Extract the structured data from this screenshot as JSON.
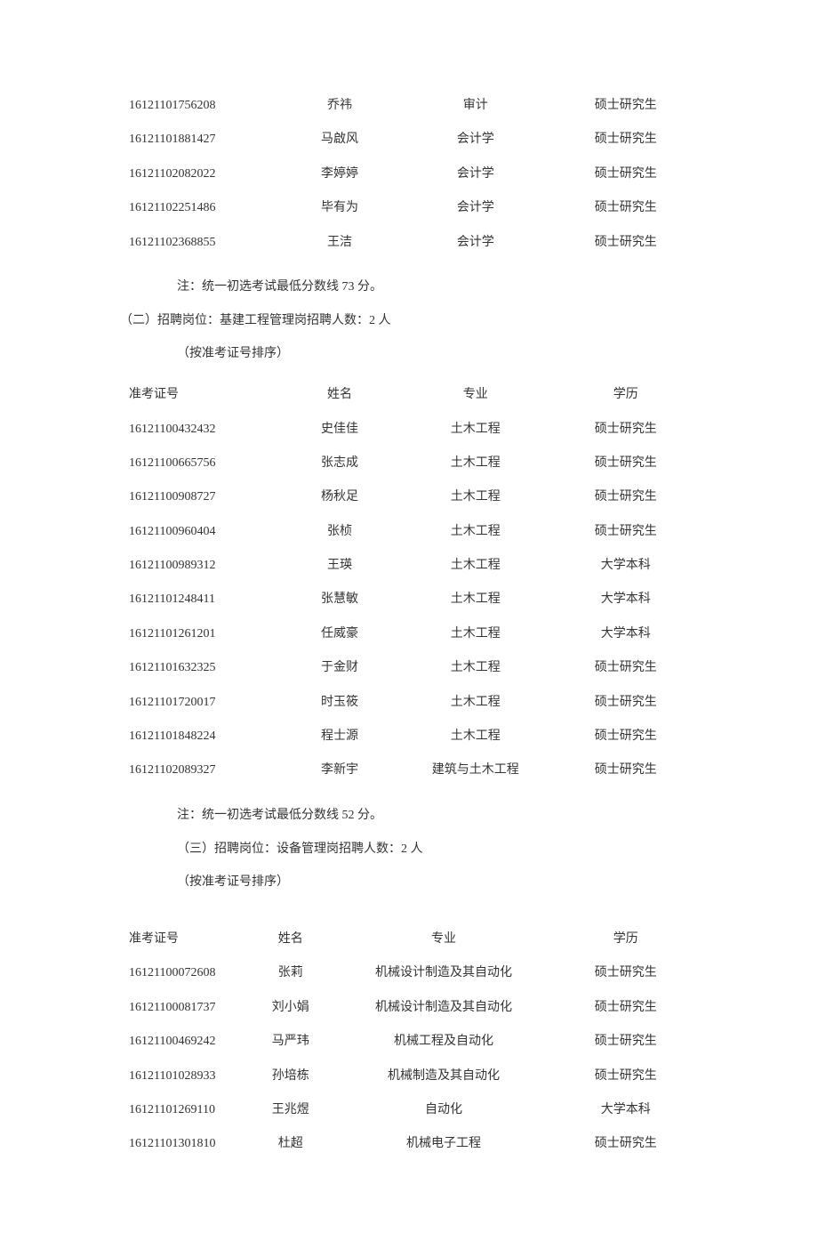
{
  "table1": {
    "rows": [
      {
        "id": "16121101756208",
        "name": "乔祎",
        "major": "审计",
        "degree": "硕士研究生"
      },
      {
        "id": "16121101881427",
        "name": "马啟风",
        "major": "会计学",
        "degree": "硕士研究生"
      },
      {
        "id": "16121102082022",
        "name": "李婷婷",
        "major": "会计学",
        "degree": "硕士研究生"
      },
      {
        "id": "16121102251486",
        "name": "毕有为",
        "major": "会计学",
        "degree": "硕士研究生"
      },
      {
        "id": "16121102368855",
        "name": "王洁",
        "major": "会计学",
        "degree": "硕士研究生"
      }
    ]
  },
  "note1": "注：统一初选考试最低分数线 73 分。",
  "section2_title": "（二）招聘岗位：基建工程管理岗招聘人数：2 人",
  "section2_sub": "（按准考证号排序）",
  "table2": {
    "headers": {
      "id": "准考证号",
      "name": "姓名",
      "major": "专业",
      "degree": "学历"
    },
    "rows": [
      {
        "id": "16121100432432",
        "name": "史佳佳",
        "major": "土木工程",
        "degree": "硕士研究生"
      },
      {
        "id": "16121100665756",
        "name": "张志成",
        "major": "土木工程",
        "degree": "硕士研究生"
      },
      {
        "id": "16121100908727",
        "name": "杨秋足",
        "major": "土木工程",
        "degree": "硕士研究生"
      },
      {
        "id": "16121100960404",
        "name": "张桢",
        "major": "土木工程",
        "degree": "硕士研究生"
      },
      {
        "id": "16121100989312",
        "name": "王瑛",
        "major": "土木工程",
        "degree": "大学本科"
      },
      {
        "id": "16121101248411",
        "name": "张慧敏",
        "major": "土木工程",
        "degree": "大学本科"
      },
      {
        "id": "16121101261201",
        "name": "任威豪",
        "major": "土木工程",
        "degree": "大学本科"
      },
      {
        "id": "16121101632325",
        "name": "于金财",
        "major": "土木工程",
        "degree": "硕士研究生"
      },
      {
        "id": "16121101720017",
        "name": "时玉筱",
        "major": "土木工程",
        "degree": "硕士研究生"
      },
      {
        "id": "16121101848224",
        "name": "程士源",
        "major": "土木工程",
        "degree": "硕士研究生"
      },
      {
        "id": "16121102089327",
        "name": "李新宇",
        "major": "建筑与土木工程",
        "degree": "硕士研究生"
      }
    ]
  },
  "note2": "注：统一初选考试最低分数线 52 分。",
  "section3_title": "（三）招聘岗位：设备管理岗招聘人数：2 人",
  "section3_sub": "（按准考证号排序）",
  "table3": {
    "headers": {
      "id": "准考证号",
      "name": "姓名",
      "major": "专业",
      "degree": "学历"
    },
    "rows": [
      {
        "id": "16121100072608",
        "name": "张莉",
        "major": "机械设计制造及其自动化",
        "degree": "硕士研究生"
      },
      {
        "id": "16121100081737",
        "name": "刘小娟",
        "major": "机械设计制造及其自动化",
        "degree": "硕士研究生"
      },
      {
        "id": "16121100469242",
        "name": "马严玮",
        "major": "机械工程及自动化",
        "degree": "硕士研究生"
      },
      {
        "id": "16121101028933",
        "name": "孙培栋",
        "major": "机械制造及其自动化",
        "degree": "硕士研究生"
      },
      {
        "id": "16121101269110",
        "name": "王兆煜",
        "major": "自动化",
        "degree": "大学本科"
      },
      {
        "id": "16121101301810",
        "name": "杜超",
        "major": "机械电子工程",
        "degree": "硕士研究生"
      }
    ]
  }
}
